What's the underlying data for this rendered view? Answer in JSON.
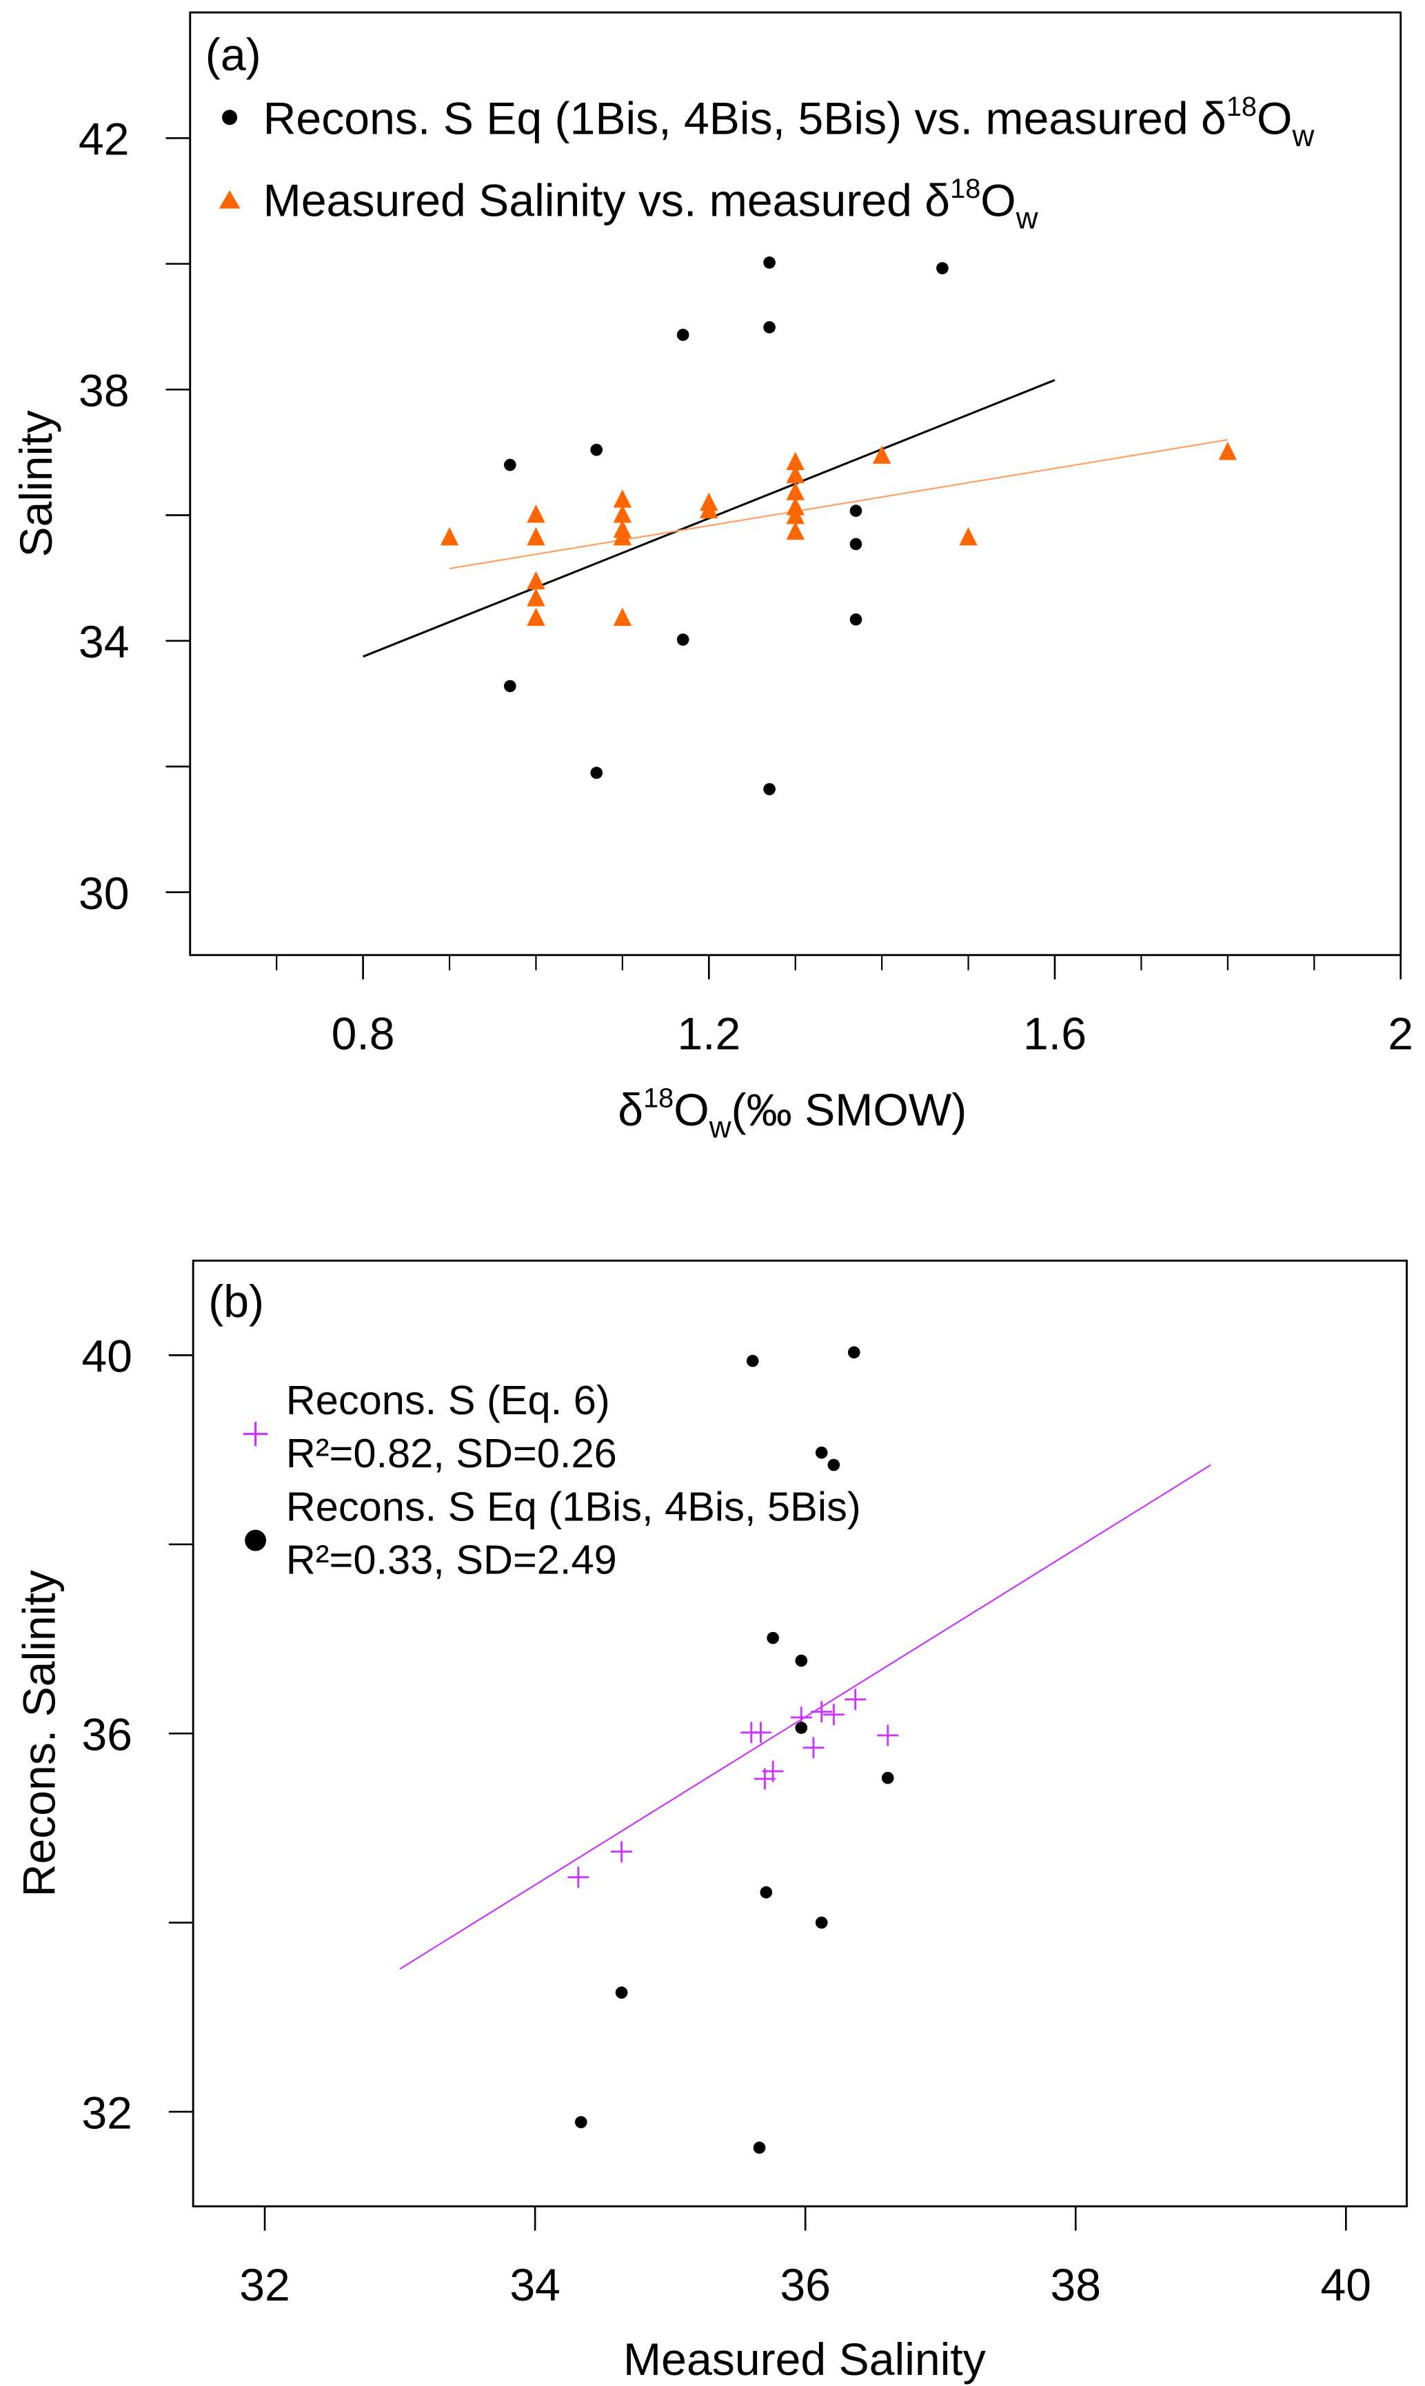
{
  "chart_data": [
    {
      "type": "scatter",
      "panel_label": "(a)",
      "xlabel": "δ18Ow(‰ SMOW)",
      "ylabel": "Salinity",
      "xlim": [
        0.6,
        2.0
      ],
      "ylim": [
        29,
        44
      ],
      "xticks": [
        0.8,
        1.2,
        1.6,
        2
      ],
      "xtick_labels": [
        "0.8",
        "1.2",
        "1.6",
        "2"
      ],
      "x_minor_step": 0.1,
      "yticks": [
        30,
        34,
        38,
        42
      ],
      "ytick_labels": [
        "30",
        "34",
        "38",
        "42"
      ],
      "y_minor_ticks": [
        32,
        36,
        40
      ],
      "legend_position": "top-left",
      "series": [
        {
          "name": "Recons. S Eq (1Bis, 4Bis, 5Bis) vs. measured δ18Ow",
          "marker": "circle",
          "color": "#000000",
          "x": [
            1.27,
            1.47,
            1.17,
            1.27,
            0.97,
            1.07,
            1.37,
            1.37,
            1.37,
            1.17,
            0.97,
            1.07,
            1.27
          ],
          "y": [
            40.02,
            39.93,
            38.87,
            38.99,
            36.8,
            37.04,
            36.07,
            35.54,
            34.34,
            34.02,
            33.28,
            31.9,
            31.64
          ],
          "fit": {
            "x": [
              0.8,
              1.6
            ],
            "y": [
              33.75,
              38.15
            ]
          }
        },
        {
          "name": "Measured Salinity vs. measured δ18Ow",
          "marker": "triangle",
          "color": "#ff6600",
          "fit_color": "#ffa060",
          "x": [
            0.9,
            1.0,
            1.0,
            1.0,
            1.0,
            1.0,
            1.1,
            1.1,
            1.1,
            1.1,
            1.1,
            1.2,
            1.2,
            1.3,
            1.3,
            1.3,
            1.3,
            1.3,
            1.3,
            1.4,
            1.5,
            1.8
          ],
          "y": [
            35.64,
            36.0,
            35.64,
            34.94,
            34.67,
            34.36,
            36.24,
            36.0,
            35.76,
            35.64,
            34.36,
            36.19,
            36.07,
            36.84,
            36.63,
            36.36,
            36.12,
            35.98,
            35.73,
            36.94,
            35.64,
            37.0
          ],
          "fit": {
            "x": [
              0.9,
              1.8
            ],
            "y": [
              35.15,
              37.2
            ]
          }
        }
      ],
      "legend": [
        {
          "label_main": "Recons. S Eq (1Bis, 4Bis, 5Bis) vs. measured δ",
          "sup": "18",
          "o": "O",
          "sub": "w"
        },
        {
          "label_main": "Measured Salinity vs. measured δ",
          "sup": "18",
          "o": "O",
          "sub": "w"
        }
      ],
      "xlabel_parts": {
        "delta": "δ",
        "sup": "18",
        "o": "O",
        "sub": "w",
        "rest": "(‰ SMOW)"
      }
    },
    {
      "type": "scatter",
      "panel_label": "(b)",
      "xlabel": "Measured Salinity",
      "ylabel": "Recons. Salinity",
      "xlim": [
        31.47,
        40.45
      ],
      "ylim": [
        31,
        41
      ],
      "xticks": [
        32,
        34,
        36,
        38,
        40
      ],
      "xtick_labels": [
        "32",
        "34",
        "36",
        "38",
        "40"
      ],
      "yticks": [
        32,
        36,
        40
      ],
      "ytick_labels": [
        "32",
        "36",
        "40"
      ],
      "y_minor_ticks": [
        34,
        38
      ],
      "legend_position": "top-left",
      "series": [
        {
          "name": "Recons. S (Eq. 6)",
          "stats": "R²=0.82, SD=0.26",
          "marker": "plus",
          "color": "#cc33ff",
          "x": [
            34.32,
            34.64,
            35.6,
            35.67,
            35.97,
            36.12,
            36.21,
            36.37,
            36.61,
            36.06,
            35.76,
            35.7
          ],
          "y": [
            34.48,
            34.75,
            36.01,
            36.01,
            36.17,
            36.23,
            36.2,
            36.36,
            35.98,
            35.85,
            35.6,
            35.52
          ],
          "fit": {
            "x": [
              33.0,
              39.0
            ],
            "y": [
              33.51,
              38.84
            ]
          }
        },
        {
          "name": "Recons. S Eq (1Bis, 4Bis, 5Bis)",
          "stats": "R²=0.33, SD=2.49",
          "marker": "circle",
          "color": "#000000",
          "x": [
            35.61,
            36.36,
            36.12,
            36.21,
            35.76,
            35.97,
            35.97,
            36.61,
            35.71,
            36.12,
            34.64,
            34.34,
            35.66
          ],
          "y": [
            39.94,
            40.03,
            38.97,
            38.84,
            37.01,
            36.77,
            36.06,
            35.53,
            34.32,
            34.0,
            33.26,
            31.89,
            31.62
          ]
        }
      ]
    }
  ]
}
